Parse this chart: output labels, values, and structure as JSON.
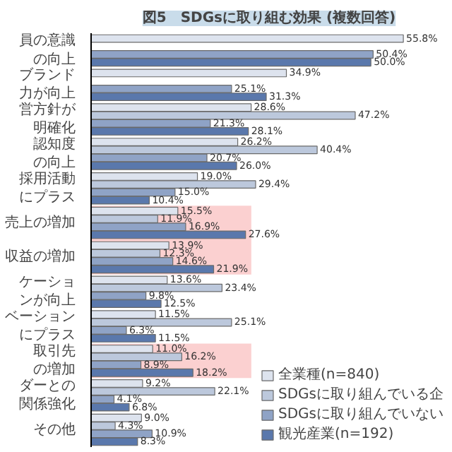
{
  "chart_data": {
    "type": "bar",
    "orientation": "horizontal",
    "title": "図5　SDGsに取り組む効果 (複数回答)",
    "categories": [
      "員の意識の向上",
      "ブランド力が向上",
      "営方針が明確化",
      "認知度の向上",
      "採用活動にプラス",
      "売上の増加",
      "収益の増加",
      "ケーションが向上",
      "ベーションにプラス",
      "取引先の増加",
      "ダーとの関係強化",
      "その他"
    ],
    "series": [
      {
        "name": "全業種(n=840)",
        "color": "#dde3ee",
        "values": [
          55.8,
          34.9,
          28.6,
          26.2,
          19.0,
          15.5,
          13.9,
          13.6,
          11.5,
          11.0,
          9.2,
          9.0
        ],
        "value_labels": [
          "55.8%",
          "34.9%",
          "28.6%",
          "26.2%",
          "19.0%",
          "15.5%",
          "13.9%",
          "13.6%",
          "11.5%",
          "11.0%",
          "9.2%",
          "9.0%"
        ]
      },
      {
        "name": "SDGsに取り組んでいる企",
        "color": "#bcc8dc",
        "values": [
          null,
          null,
          47.2,
          40.4,
          29.4,
          11.9,
          12.3,
          23.4,
          25.1,
          16.2,
          22.1,
          4.3
        ],
        "value_labels": [
          null,
          null,
          "47.2%",
          "40.4%",
          "29.4%",
          "11.9%",
          "12.3%",
          "23.4%",
          "25.1%",
          "16.2%",
          "22.1%",
          "4.3%"
        ]
      },
      {
        "name": "SDGsに取り組んでいない",
        "color": "#8fa3c6",
        "values": [
          50.4,
          25.1,
          21.3,
          20.7,
          15.0,
          16.9,
          14.6,
          9.8,
          6.3,
          8.9,
          4.1,
          10.9
        ],
        "value_labels": [
          "50.4%",
          "25.1%",
          "21.3%",
          "20.7%",
          "15.0%",
          "16.9%",
          "14.6%",
          "9.8%",
          "6.3%",
          "8.9%",
          "4.1%",
          "10.9%"
        ]
      },
      {
        "name": "観光産業(n=192)",
        "color": "#5a78ac",
        "values": [
          50.0,
          31.3,
          28.1,
          26.0,
          10.4,
          27.6,
          21.9,
          12.5,
          11.5,
          18.2,
          6.8,
          8.3
        ],
        "value_labels": [
          "50.0%",
          "31.3%",
          "28.1%",
          "26.0%",
          "10.4%",
          "27.6%",
          "21.9%",
          "12.5%",
          "11.5%",
          "18.2%",
          "6.8%",
          "8.3%"
        ]
      }
    ],
    "bands": [
      {
        "axis": "y",
        "from": "売上の増加",
        "to": "収益の増加",
        "color": "#fbd0d0"
      },
      {
        "axis": "y",
        "from": "取引先の増加",
        "to": "取引先の増加",
        "color": "#fbd0d0"
      }
    ],
    "legend": "bottom right",
    "grid": false
  }
}
